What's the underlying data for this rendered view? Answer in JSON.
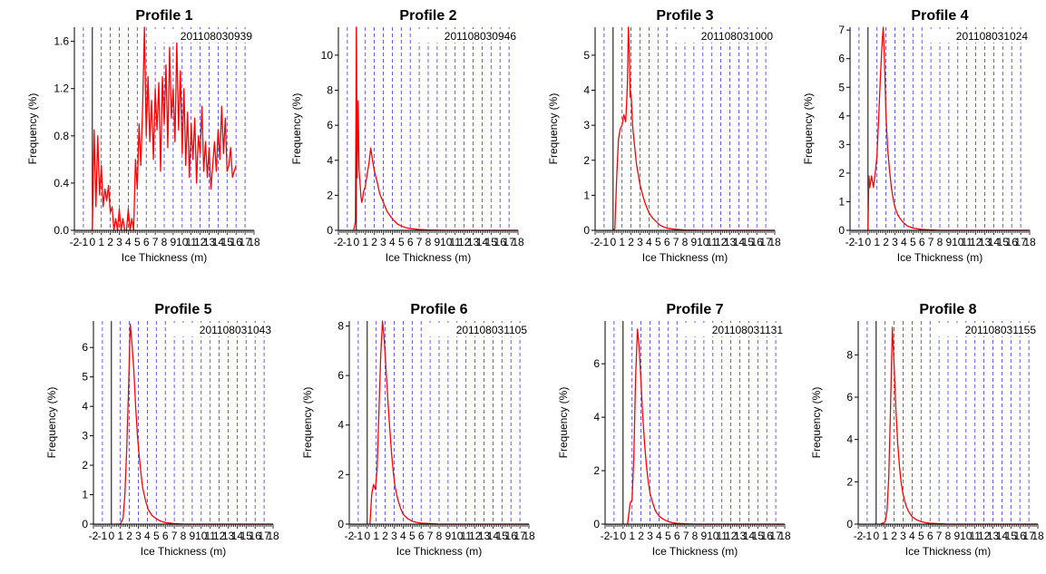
{
  "chart_data": [
    {
      "type": "line",
      "title": "Profile 1",
      "annotation": "201108030939",
      "xlabel": "Ice Thickness (m)",
      "ylabel": "Frequency (%)",
      "xlim": [
        -2,
        18
      ],
      "ylim": [
        0,
        1.72
      ],
      "xticks": [
        -2,
        -1,
        0,
        1,
        2,
        3,
        4,
        5,
        6,
        7,
        8,
        9,
        10,
        11,
        12,
        13,
        14,
        15,
        16,
        17,
        18
      ],
      "yticks": [
        0.0,
        0.4,
        0.8,
        1.2,
        1.6
      ],
      "ytick_labels": [
        "0.0",
        "0.4",
        "0.8",
        "1.2",
        "1.6"
      ],
      "grid": "vertical dashed blue lines at integer x",
      "series": [
        {
          "color": "#ff0000",
          "x": [
            -0.2,
            0.0,
            0.2,
            0.4,
            0.6,
            0.8,
            1.0,
            1.2,
            1.4,
            1.6,
            1.8,
            2.0,
            2.2,
            2.4,
            2.6,
            2.8,
            3.0,
            3.2,
            3.4,
            3.6,
            3.8,
            4.0,
            4.2,
            4.4,
            4.6,
            4.8,
            5.0,
            5.2,
            5.4,
            5.6,
            5.8,
            6.0,
            6.2,
            6.4,
            6.6,
            6.8,
            7.0,
            7.2,
            7.4,
            7.6,
            7.8,
            8.0,
            8.2,
            8.4,
            8.6,
            8.8,
            9.0,
            9.2,
            9.4,
            9.6,
            9.8,
            10.0,
            10.2,
            10.4,
            10.6,
            10.8,
            11.0,
            11.2,
            11.4,
            11.6,
            11.8,
            12.0,
            12.2,
            12.4,
            12.6,
            12.8,
            13.0,
            13.2,
            13.4,
            13.6,
            13.8,
            14.0,
            14.2,
            14.4,
            14.6,
            14.8,
            15.0,
            15.2,
            15.4,
            15.6,
            15.8,
            16.0
          ],
          "y": [
            0.0,
            0.0,
            0.85,
            0.2,
            0.8,
            0.3,
            0.55,
            0.2,
            0.35,
            0.25,
            0.38,
            0.15,
            0.2,
            0.0,
            0.1,
            0.0,
            0.18,
            0.0,
            0.1,
            0.0,
            0.0,
            0.18,
            0.0,
            0.1,
            0.0,
            0.6,
            0.35,
            0.9,
            0.55,
            1.05,
            1.72,
            0.8,
            1.3,
            0.75,
            1.1,
            0.6,
            1.2,
            0.85,
            1.25,
            0.5,
            1.3,
            0.9,
            1.4,
            0.7,
            1.55,
            0.95,
            1.2,
            0.75,
            1.6,
            0.85,
            1.35,
            0.65,
            1.2,
            0.55,
            1.0,
            0.45,
            0.9,
            0.6,
            0.95,
            0.4,
            0.8,
            0.65,
            1.05,
            0.5,
            0.75,
            0.45,
            0.7,
            0.35,
            0.55,
            0.75,
            0.5,
            0.85,
            0.6,
            1.05,
            0.65,
            0.95,
            0.5,
            0.55,
            0.7,
            0.45,
            0.5,
            0.55
          ]
        }
      ]
    },
    {
      "type": "line",
      "title": "Profile 2",
      "annotation": "201108030946",
      "xlabel": "Ice Thickness (m)",
      "ylabel": "Frequency (%)",
      "xlim": [
        -2,
        18
      ],
      "ylim": [
        0,
        11.6
      ],
      "xticks": [
        -2,
        -1,
        0,
        1,
        2,
        3,
        4,
        5,
        6,
        7,
        8,
        9,
        10,
        11,
        12,
        13,
        14,
        15,
        16,
        17,
        18
      ],
      "yticks": [
        0,
        2,
        4,
        6,
        8,
        10
      ],
      "ytick_labels": [
        "0",
        "2",
        "4",
        "6",
        "8",
        "10"
      ],
      "grid": "vertical dashed blue lines at integer x",
      "series": [
        {
          "color": "#ff0000",
          "x": [
            -0.3,
            -0.1,
            0.0,
            0.1,
            0.2,
            0.3,
            0.4,
            0.5,
            0.6,
            0.7,
            0.8,
            1.0,
            1.2,
            1.4,
            1.6,
            1.8,
            2.0,
            2.3,
            2.6,
            3.0,
            3.4,
            3.8,
            4.2,
            4.6,
            5.0,
            5.5,
            6.0,
            7.0,
            8.0,
            10.0,
            14.0,
            18.0
          ],
          "y": [
            0.0,
            0.5,
            11.6,
            3.0,
            7.4,
            3.5,
            2.8,
            2.0,
            1.6,
            1.8,
            2.2,
            2.5,
            3.2,
            3.8,
            4.7,
            4.0,
            3.4,
            2.8,
            2.1,
            1.6,
            1.1,
            0.8,
            0.55,
            0.35,
            0.25,
            0.15,
            0.1,
            0.05,
            0.02,
            0.0,
            0.0,
            0.0
          ]
        }
      ]
    },
    {
      "type": "line",
      "title": "Profile 3",
      "annotation": "201108031000",
      "xlabel": "Ice Thickness (m)",
      "ylabel": "Frequency (%)",
      "xlim": [
        -2,
        18
      ],
      "ylim": [
        0,
        5.8
      ],
      "xticks": [
        -2,
        -1,
        0,
        1,
        2,
        3,
        4,
        5,
        6,
        7,
        8,
        9,
        10,
        11,
        12,
        13,
        14,
        15,
        16,
        17,
        18
      ],
      "yticks": [
        0,
        1,
        2,
        3,
        4,
        5
      ],
      "ytick_labels": [
        "0",
        "1",
        "2",
        "3",
        "4",
        "5"
      ],
      "grid": "vertical dashed blue lines at integer x",
      "series": [
        {
          "color": "#ff0000",
          "x": [
            0.0,
            0.2,
            0.4,
            0.6,
            0.8,
            1.0,
            1.2,
            1.4,
            1.5,
            1.6,
            1.7,
            1.8,
            1.9,
            2.0,
            2.1,
            2.2,
            2.4,
            2.6,
            2.8,
            3.0,
            3.3,
            3.6,
            4.0,
            4.4,
            4.8,
            5.2,
            5.6,
            6.0,
            7.0,
            8.0,
            10.0,
            14.0,
            18.0
          ],
          "y": [
            0.0,
            0.05,
            1.5,
            2.6,
            2.9,
            3.0,
            3.3,
            3.1,
            3.6,
            4.2,
            5.8,
            5.2,
            3.8,
            3.9,
            3.4,
            2.9,
            2.4,
            1.9,
            1.6,
            1.3,
            1.0,
            0.75,
            0.5,
            0.35,
            0.25,
            0.15,
            0.1,
            0.06,
            0.03,
            0.01,
            0.0,
            0.0,
            0.0
          ]
        }
      ]
    },
    {
      "type": "line",
      "title": "Profile 4",
      "annotation": "201108031024",
      "xlabel": "Ice Thickness (m)",
      "ylabel": "Frequency (%)",
      "xlim": [
        -2,
        18
      ],
      "ylim": [
        0,
        7.1
      ],
      "xticks": [
        -2,
        -1,
        0,
        1,
        2,
        3,
        4,
        5,
        6,
        7,
        8,
        9,
        10,
        11,
        12,
        13,
        14,
        15,
        16,
        17,
        18
      ],
      "yticks": [
        0,
        1,
        2,
        3,
        4,
        5,
        6,
        7
      ],
      "ytick_labels": [
        "0",
        "1",
        "2",
        "3",
        "4",
        "5",
        "6",
        "7"
      ],
      "grid": "vertical dashed blue lines at integer x",
      "series": [
        {
          "color": "#ff0000",
          "x": [
            0.0,
            0.1,
            0.2,
            0.4,
            0.6,
            0.8,
            1.0,
            1.2,
            1.4,
            1.6,
            1.7,
            1.8,
            1.9,
            2.0,
            2.2,
            2.4,
            2.6,
            2.8,
            3.0,
            3.3,
            3.6,
            4.0,
            4.4,
            5.0,
            6.0,
            8.0,
            12.0,
            18.0
          ],
          "y": [
            0.0,
            1.9,
            1.5,
            1.9,
            1.5,
            2.0,
            2.6,
            4.0,
            5.5,
            6.7,
            7.1,
            6.3,
            5.2,
            4.0,
            2.8,
            2.1,
            1.5,
            1.1,
            0.8,
            0.55,
            0.4,
            0.25,
            0.15,
            0.08,
            0.03,
            0.0,
            0.0,
            0.0
          ]
        }
      ]
    },
    {
      "type": "line",
      "title": "Profile 5",
      "annotation": "201108031043",
      "xlabel": "Ice Thickness (m)",
      "ylabel": "Frequency (%)",
      "xlim": [
        -2,
        18
      ],
      "ylim": [
        0,
        6.9
      ],
      "xticks": [
        -2,
        -1,
        0,
        1,
        2,
        3,
        4,
        5,
        6,
        7,
        8,
        9,
        10,
        11,
        12,
        13,
        14,
        15,
        16,
        17,
        18
      ],
      "yticks": [
        0,
        1,
        2,
        3,
        4,
        5,
        6
      ],
      "ytick_labels": [
        "0",
        "1",
        "2",
        "3",
        "4",
        "5",
        "6"
      ],
      "grid": "vertical dashed blue lines at integer x",
      "series": [
        {
          "color": "#ff0000",
          "x": [
            0.5,
            1.0,
            1.3,
            1.5,
            1.7,
            1.9,
            2.1,
            2.3,
            2.5,
            2.7,
            2.9,
            3.1,
            3.3,
            3.5,
            3.8,
            4.1,
            4.5,
            5.0,
            5.5,
            6.0,
            7.0,
            8.0,
            12.0,
            18.0
          ],
          "y": [
            0.0,
            0.0,
            0.2,
            1.0,
            2.5,
            4.5,
            6.8,
            6.1,
            5.2,
            4.0,
            3.0,
            2.3,
            1.7,
            1.2,
            0.8,
            0.5,
            0.3,
            0.18,
            0.1,
            0.05,
            0.02,
            0.0,
            0.0,
            0.0
          ]
        }
      ]
    },
    {
      "type": "line",
      "title": "Profile 6",
      "annotation": "201108031105",
      "xlabel": "Ice Thickness (m)",
      "ylabel": "Frequency (%)",
      "xlim": [
        -2,
        18
      ],
      "ylim": [
        0,
        8.2
      ],
      "xticks": [
        -2,
        -1,
        0,
        1,
        2,
        3,
        4,
        5,
        6,
        7,
        8,
        9,
        10,
        11,
        12,
        13,
        14,
        15,
        16,
        17,
        18
      ],
      "yticks": [
        0,
        2,
        4,
        6,
        8
      ],
      "ytick_labels": [
        "0",
        "2",
        "4",
        "6",
        "8"
      ],
      "grid": "vertical dashed blue lines at integer x",
      "series": [
        {
          "color": "#ff0000",
          "x": [
            0.3,
            0.5,
            0.7,
            0.9,
            1.1,
            1.3,
            1.5,
            1.7,
            1.9,
            2.1,
            2.3,
            2.5,
            2.7,
            2.9,
            3.1,
            3.4,
            3.7,
            4.0,
            4.5,
            5.0,
            5.5,
            6.0,
            7.0,
            8.0,
            12.0,
            18.0
          ],
          "y": [
            0.0,
            1.2,
            1.6,
            1.4,
            2.2,
            4.5,
            6.8,
            8.2,
            7.4,
            6.2,
            5.0,
            3.9,
            2.9,
            2.1,
            1.5,
            1.0,
            0.65,
            0.4,
            0.22,
            0.12,
            0.07,
            0.04,
            0.02,
            0.0,
            0.0,
            0.0
          ]
        }
      ]
    },
    {
      "type": "line",
      "title": "Profile 7",
      "annotation": "201108031131",
      "xlabel": "Ice Thickness (m)",
      "ylabel": "Frequency (%)",
      "xlim": [
        -2,
        18
      ],
      "ylim": [
        0,
        7.6
      ],
      "xticks": [
        -2,
        -1,
        0,
        1,
        2,
        3,
        4,
        5,
        6,
        7,
        8,
        9,
        10,
        11,
        12,
        13,
        14,
        15,
        16,
        17,
        18
      ],
      "yticks": [
        0,
        2,
        4,
        6
      ],
      "ytick_labels": [
        "0",
        "2",
        "4",
        "6"
      ],
      "grid": "vertical dashed blue lines at integer x",
      "series": [
        {
          "color": "#ff0000",
          "x": [
            0.5,
            0.8,
            1.0,
            1.2,
            1.4,
            1.6,
            1.8,
            2.0,
            2.2,
            2.4,
            2.6,
            2.8,
            3.0,
            3.3,
            3.6,
            4.0,
            4.5,
            5.0,
            5.5,
            6.0,
            7.0,
            8.0,
            12.0,
            18.0
          ],
          "y": [
            0.0,
            0.8,
            0.9,
            2.5,
            5.5,
            7.3,
            6.6,
            5.3,
            4.0,
            3.0,
            2.2,
            1.6,
            1.15,
            0.8,
            0.5,
            0.3,
            0.18,
            0.1,
            0.05,
            0.03,
            0.01,
            0.0,
            0.0,
            0.0
          ]
        }
      ]
    },
    {
      "type": "line",
      "title": "Profile 8",
      "annotation": "201108031155",
      "xlabel": "Ice Thickness (m)",
      "ylabel": "Frequency (%)",
      "xlim": [
        -2,
        18
      ],
      "ylim": [
        0,
        9.6
      ],
      "xticks": [
        -2,
        -1,
        0,
        1,
        2,
        3,
        4,
        5,
        6,
        7,
        8,
        9,
        10,
        11,
        12,
        13,
        14,
        15,
        16,
        17,
        18
      ],
      "yticks": [
        0,
        2,
        4,
        6,
        8
      ],
      "ytick_labels": [
        "0",
        "2",
        "4",
        "6",
        "8"
      ],
      "grid": "vertical dashed blue lines at integer x",
      "series": [
        {
          "color": "#ff0000",
          "x": [
            0.5,
            1.0,
            1.2,
            1.4,
            1.6,
            1.8,
            2.0,
            2.2,
            2.4,
            2.6,
            2.8,
            3.0,
            3.3,
            3.6,
            4.0,
            4.5,
            5.0,
            5.5,
            6.0,
            7.0,
            8.0,
            12.0,
            18.0
          ],
          "y": [
            0.0,
            0.1,
            0.6,
            2.2,
            5.5,
            9.3,
            7.5,
            5.4,
            3.8,
            2.7,
            1.9,
            1.4,
            0.9,
            0.6,
            0.35,
            0.2,
            0.12,
            0.07,
            0.04,
            0.02,
            0.0,
            0.0,
            0.0
          ]
        }
      ]
    }
  ]
}
